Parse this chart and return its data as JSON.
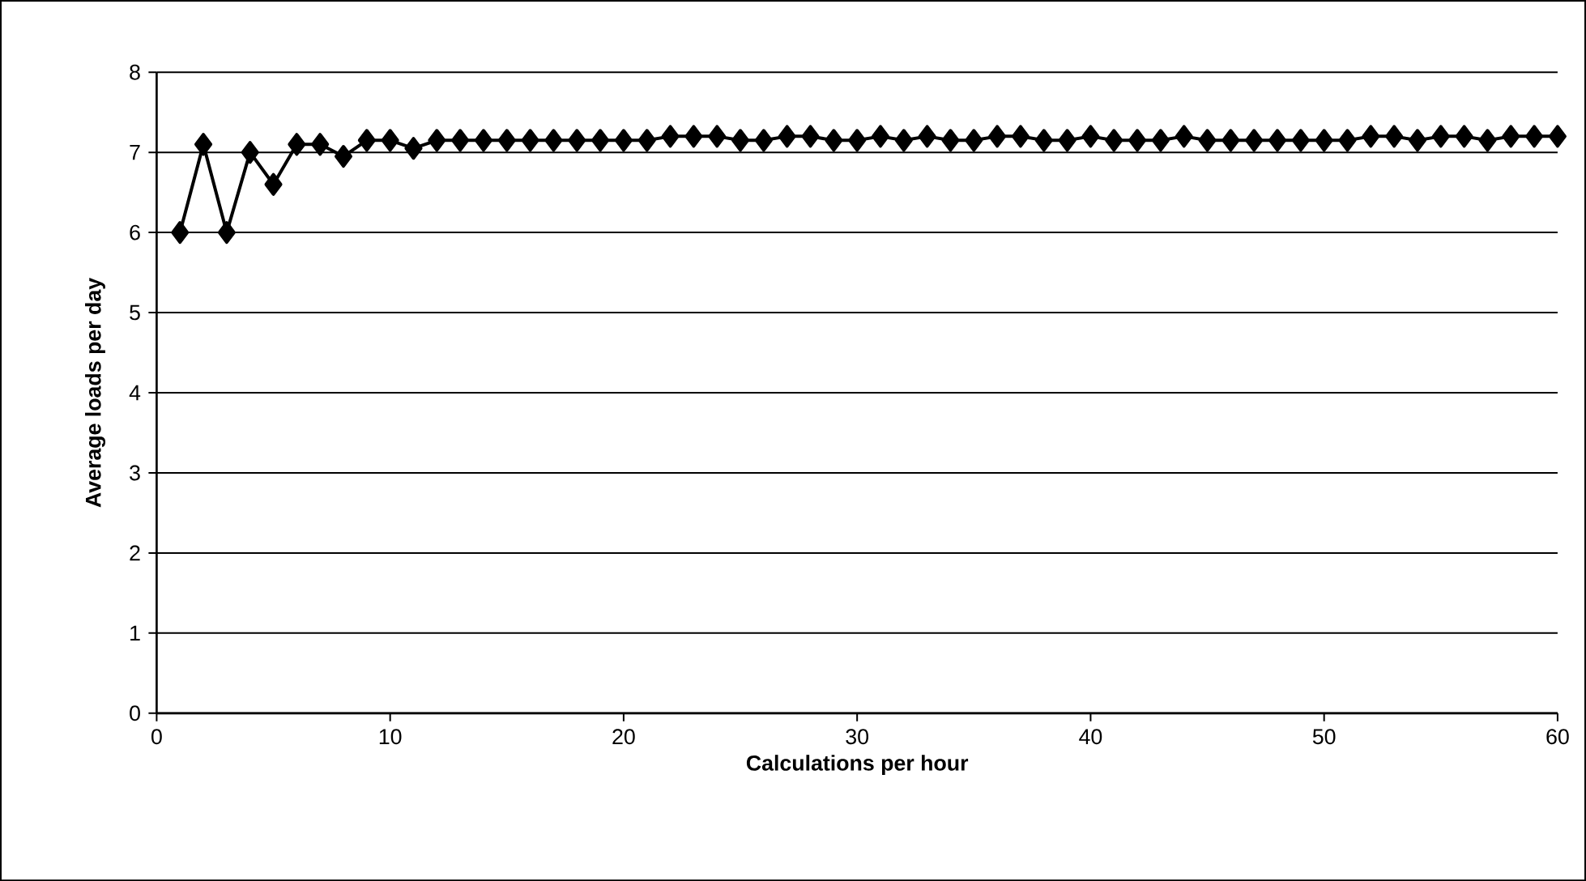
{
  "chart_data": {
    "type": "line",
    "xlabel": "Calculations per hour",
    "ylabel": "Average loads per day",
    "x": [
      1,
      2,
      3,
      4,
      5,
      6,
      7,
      8,
      9,
      10,
      11,
      12,
      13,
      14,
      15,
      16,
      17,
      18,
      19,
      20,
      21,
      22,
      23,
      24,
      25,
      26,
      27,
      28,
      29,
      30,
      31,
      32,
      33,
      34,
      35,
      36,
      37,
      38,
      39,
      40,
      41,
      42,
      43,
      44,
      45,
      46,
      47,
      48,
      49,
      50,
      51,
      52,
      53,
      54,
      55,
      56,
      57,
      58,
      59,
      60
    ],
    "series": [
      {
        "color": "#000000",
        "values": [
          6.0,
          7.1,
          6.0,
          7.0,
          6.6,
          7.1,
          7.1,
          6.95,
          7.15,
          7.15,
          7.05,
          7.15,
          7.15,
          7.15,
          7.15,
          7.15,
          7.15,
          7.15,
          7.15,
          7.15,
          7.15,
          7.2,
          7.2,
          7.2,
          7.15,
          7.15,
          7.2,
          7.2,
          7.15,
          7.15,
          7.2,
          7.15,
          7.2,
          7.15,
          7.15,
          7.2,
          7.2,
          7.15,
          7.15,
          7.2,
          7.15,
          7.15,
          7.15,
          7.2,
          7.15,
          7.15,
          7.15,
          7.15,
          7.15,
          7.15,
          7.15,
          7.2,
          7.2,
          7.15,
          7.2,
          7.2,
          7.15,
          7.2,
          7.2,
          7.2
        ]
      }
    ],
    "xlim": [
      0,
      60
    ],
    "xticks": [
      0,
      10,
      20,
      30,
      40,
      50,
      60
    ],
    "ylim": [
      0,
      8
    ],
    "yticks": [
      0,
      1,
      2,
      3,
      4,
      5,
      6,
      7,
      8
    ],
    "grid": "y",
    "marker": "diamond",
    "line_style": "solid"
  }
}
